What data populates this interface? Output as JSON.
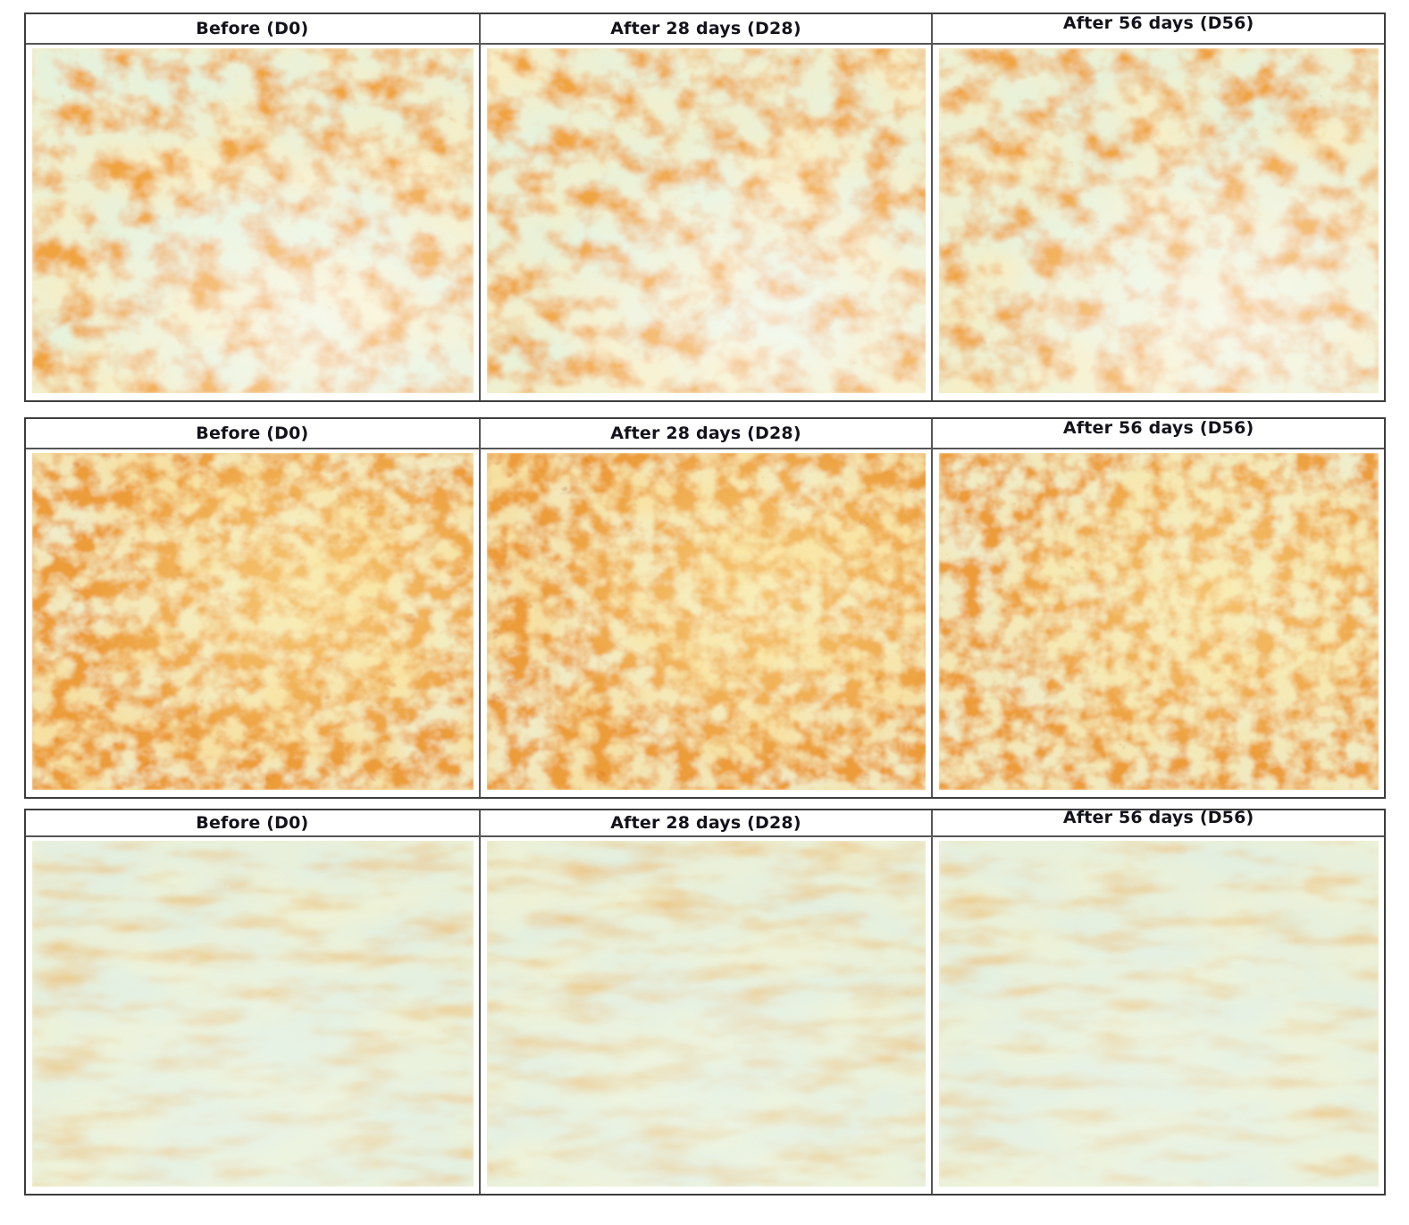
{
  "figure": {
    "kind": "clinical-skin-before-after-grid",
    "rows": 3,
    "cols": 3
  },
  "blocks": [
    {
      "name": "subject-1",
      "headers": [
        "Before (D0)",
        "After 28 days (D28)",
        "After 56 days (D56)"
      ]
    },
    {
      "name": "subject-2",
      "headers": [
        "Before (D0)",
        "After 28 days (D28)",
        "After 56 days (D56)"
      ]
    },
    {
      "name": "subject-3",
      "headers": [
        "Before (D0)",
        "After 28 days (D28)",
        "After 56 days (D56)"
      ]
    }
  ],
  "colors": {
    "page_bg": "#ffffff",
    "border_outer": "#3d3d3d",
    "border_inner": "#565656",
    "header_text": "#13131b",
    "skin_cream": "#f6eec6",
    "skin_orange": "#f0a440",
    "skin_red_speck": "#cc4a1e",
    "skin_pale_mint": "#e6f2dc"
  },
  "textures": {
    "rows": [
      {
        "defaults": {
          "base": "#f6eec6",
          "pale": "#e6f2dc",
          "pk": 2.3,
          "pb": -0.62,
          "pblur": 4,
          "bfPale": "0.010 0.012",
          "spot": "#f0a440",
          "sk": 2.7,
          "sb": -1.08,
          "sblur": 1.3,
          "bfSpot": "0.028 0.032",
          "speck": "#e08a2e",
          "kk": 1.3,
          "kb": -0.85,
          "bfSpeck": "0.07 0.08",
          "hi": "#ffffff",
          "hop": 0.5,
          "hx": "65%",
          "hy": "78%",
          "hr": "55%"
        },
        "panels": [
          {
            "seed": 5
          },
          {
            "seed": 9
          },
          {
            "seed": 14,
            "pb": -0.58,
            "hop": 0.55
          }
        ]
      },
      {
        "defaults": {
          "base": "#f6e0a2",
          "pale": "#efedcc",
          "pk": 2.0,
          "pb": -0.64,
          "pblur": 3,
          "bfPale": "0.012 0.014",
          "spot": "#ec9c38",
          "sk": 3.0,
          "sb": -1.0,
          "sblur": 1,
          "bfSpot": "0.042 0.048",
          "speck": "#cc4a1e",
          "kk": 1.5,
          "kb": -0.9,
          "bfSpeck": "0.05 0.055",
          "hi": "#fff2b0",
          "hop": 0.5,
          "hx": "62%",
          "hy": "42%",
          "hr": "50%"
        },
        "panels": [
          {
            "seed": 23,
            "kb": -0.86
          },
          {
            "seed": 29,
            "sb": -1.02
          },
          {
            "seed": 36,
            "sb": -1.1,
            "kb": -0.98,
            "base": "#f4e6b0",
            "hop": 0.45
          }
        ]
      },
      {
        "defaults": {
          "base": "#eef2d6",
          "pale": "#e3efe0",
          "pk": 2.4,
          "pb": -0.66,
          "pblur": 5,
          "bfPale": "0.008 0.02",
          "spot": "#ecc274",
          "sk": 2.1,
          "sb": -0.95,
          "sblur": 2,
          "bfSpot": "0.012 0.05",
          "speck": "#e2aa54",
          "kk": 0.9,
          "kb": -0.72,
          "bfSpeck": "0.03 0.09",
          "hi": "#ecf6ec",
          "hop": 0.5,
          "hx": "50%",
          "hy": "78%",
          "hr": "60%"
        },
        "panels": [
          {
            "seed": 44
          },
          {
            "seed": 49,
            "sb": -0.9
          },
          {
            "seed": 57,
            "sb": -1.0,
            "pb": -0.62
          }
        ]
      }
    ]
  }
}
